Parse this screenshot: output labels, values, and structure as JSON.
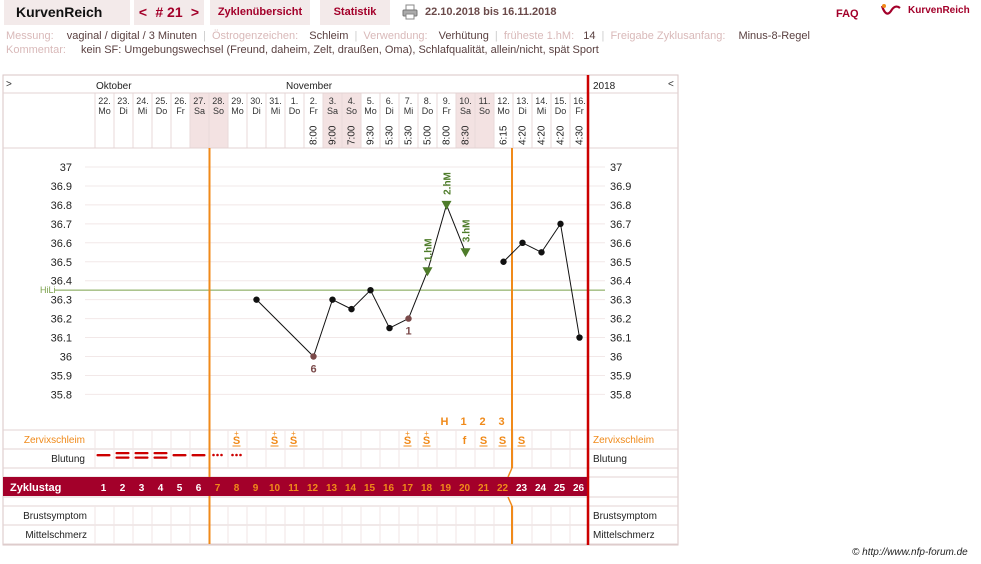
{
  "header": {
    "brand": "KurvenReich",
    "prev": "<",
    "cycle": "# 21",
    "next": ">",
    "tab_cycles": "Zyklenübersicht",
    "tab_stats": "Statistik",
    "date_range": "22.10.2018 bis 16.11.2018",
    "faq": "FAQ",
    "logo_text": "KurvenReich"
  },
  "meta": {
    "messung_label": "Messung:",
    "messung_value": "vaginal / digital / 3 Minuten",
    "oestrogen_label": "Östrogenzeichen:",
    "oestrogen_value": "Schleim",
    "verwendung_label": "Verwendung:",
    "verwendung_value": "Verhütung",
    "frueheste_label": "früheste 1.hM:",
    "frueheste_value": "14",
    "freigabe_label": "Freigabe Zyklusanfang:",
    "freigabe_value": "Minus-8-Regel",
    "kommentar_label": "Kommentar:",
    "kommentar_value": "kein SF: Umgebungswechsel (Freund, daheim, Zelt, draußen, Oma), Schlafqualität, allein/nicht, spät Sport"
  },
  "calendar": {
    "expand_left": ">",
    "collapse_right": "<",
    "year": "2018",
    "month_oct": "Oktober",
    "month_nov": "November",
    "days": [
      {
        "date": "22.",
        "wd": "Mo",
        "time": "",
        "weekend": false
      },
      {
        "date": "23.",
        "wd": "Di",
        "time": "",
        "weekend": false
      },
      {
        "date": "24.",
        "wd": "Mi",
        "time": "",
        "weekend": false
      },
      {
        "date": "25.",
        "wd": "Do",
        "time": "",
        "weekend": false
      },
      {
        "date": "26.",
        "wd": "Fr",
        "time": "",
        "weekend": false
      },
      {
        "date": "27.",
        "wd": "Sa",
        "time": "",
        "weekend": true
      },
      {
        "date": "28.",
        "wd": "So",
        "time": "",
        "weekend": true
      },
      {
        "date": "29.",
        "wd": "Mo",
        "time": "",
        "weekend": false
      },
      {
        "date": "30.",
        "wd": "Di",
        "time": "",
        "weekend": false
      },
      {
        "date": "31.",
        "wd": "Mi",
        "time": "",
        "weekend": false
      },
      {
        "date": "1.",
        "wd": "Do",
        "time": "",
        "weekend": false
      },
      {
        "date": "2.",
        "wd": "Fr",
        "time": "8:00",
        "weekend": false
      },
      {
        "date": "3.",
        "wd": "Sa",
        "time": "9:00",
        "weekend": true
      },
      {
        "date": "4.",
        "wd": "So",
        "time": "7:00",
        "weekend": true
      },
      {
        "date": "5.",
        "wd": "Mo",
        "time": "9:30",
        "weekend": false
      },
      {
        "date": "6.",
        "wd": "Di",
        "time": "5:30",
        "weekend": false
      },
      {
        "date": "7.",
        "wd": "Mi",
        "time": "5:30",
        "weekend": false
      },
      {
        "date": "8.",
        "wd": "Do",
        "time": "5:00",
        "weekend": false
      },
      {
        "date": "9.",
        "wd": "Fr",
        "time": "8:00",
        "weekend": false
      },
      {
        "date": "10.",
        "wd": "Sa",
        "time": "8:30",
        "weekend": true
      },
      {
        "date": "11.",
        "wd": "So",
        "time": "",
        "weekend": true
      },
      {
        "date": "12.",
        "wd": "Mo",
        "time": "6:15",
        "weekend": false
      },
      {
        "date": "13.",
        "wd": "Di",
        "time": "4:20",
        "weekend": false
      },
      {
        "date": "14.",
        "wd": "Mi",
        "time": "4:20",
        "weekend": false
      },
      {
        "date": "15.",
        "wd": "Do",
        "time": "4:20",
        "weekend": false
      },
      {
        "date": "16.",
        "wd": "Fr",
        "time": "4:30",
        "weekend": false
      }
    ],
    "cycle_days": [
      "1",
      "2",
      "3",
      "4",
      "5",
      "6",
      "7",
      "8",
      "9",
      "10",
      "11",
      "12",
      "13",
      "14",
      "15",
      "16",
      "17",
      "18",
      "19",
      "20",
      "21",
      "22",
      "23",
      "24",
      "25",
      "26"
    ]
  },
  "rows": {
    "zervix": "Zervixschleim",
    "blutung": "Blutung",
    "zyklustag": "Zyklustag",
    "brust": "Brustsymptom",
    "mittel": "Mittelschmerz",
    "hili": "HiLi"
  },
  "chart_data": {
    "type": "line",
    "ylim": [
      35.8,
      37.0
    ],
    "yticks": [
      "37",
      "36.9",
      "36.8",
      "36.7",
      "36.6",
      "36.5",
      "36.4",
      "36.3",
      "36.2",
      "36.1",
      "36",
      "35.9",
      "35.8"
    ],
    "hili": 36.35,
    "temps": [
      {
        "day": 9,
        "value": 36.3,
        "connect": false
      },
      {
        "day": 12,
        "value": 36.0,
        "connect": true,
        "excluded": true,
        "note": "6"
      },
      {
        "day": 13,
        "value": 36.3,
        "connect": true
      },
      {
        "day": 14,
        "value": 36.25,
        "connect": true
      },
      {
        "day": 15,
        "value": 36.35,
        "connect": true
      },
      {
        "day": 16,
        "value": 36.15,
        "connect": true
      },
      {
        "day": 17,
        "value": 36.2,
        "connect": true,
        "excluded": true,
        "note": "1"
      },
      {
        "day": 18,
        "value": 36.45,
        "connect": true,
        "marker": "1.hM"
      },
      {
        "day": 19,
        "value": 36.8,
        "connect": true,
        "marker": "2.hM"
      },
      {
        "day": 20,
        "value": 36.55,
        "connect": true,
        "marker": "3.hM"
      },
      {
        "day": 22,
        "value": 36.5,
        "connect": false
      },
      {
        "day": 23,
        "value": 36.6,
        "connect": true
      },
      {
        "day": 24,
        "value": 36.55,
        "connect": true
      },
      {
        "day": 25,
        "value": 36.7,
        "connect": true
      },
      {
        "day": 26,
        "value": 36.1,
        "connect": true
      }
    ],
    "peak_labels": [
      {
        "day": 19,
        "text": "H"
      },
      {
        "day": 20,
        "text": "1"
      },
      {
        "day": 21,
        "text": "2"
      },
      {
        "day": 22,
        "text": "3"
      }
    ],
    "zervix_symbols": [
      {
        "day": 8,
        "text": "S+"
      },
      {
        "day": 10,
        "text": "S+"
      },
      {
        "day": 11,
        "text": "S+"
      },
      {
        "day": 17,
        "text": "S+"
      },
      {
        "day": 18,
        "text": "S+"
      },
      {
        "day": 20,
        "text": "f"
      },
      {
        "day": 21,
        "text": "S"
      },
      {
        "day": 22,
        "text": "S"
      },
      {
        "day": 23,
        "text": "S"
      }
    ],
    "bleeding": [
      {
        "day": 1,
        "level": "light"
      },
      {
        "day": 2,
        "level": "heavy"
      },
      {
        "day": 3,
        "level": "heavy"
      },
      {
        "day": 4,
        "level": "heavy"
      },
      {
        "day": 5,
        "level": "medium"
      },
      {
        "day": 6,
        "level": "medium"
      },
      {
        "day": 7,
        "level": "spotting"
      },
      {
        "day": 8,
        "level": "spotting"
      }
    ],
    "fertile_start_day": 7,
    "fertile_end_day": 22,
    "cycle_end_day": 26
  },
  "footer": {
    "copyright": "© http://www.nfp-forum.de"
  },
  "colors": {
    "brand": "#a3002a",
    "orange": "#f08a1a",
    "grid": "#e6d0d0",
    "weekend": "#f3e2e2",
    "hili": "#7aa04a",
    "green_marker": "#4e7c2a",
    "excluded": "#7b4a4a"
  }
}
